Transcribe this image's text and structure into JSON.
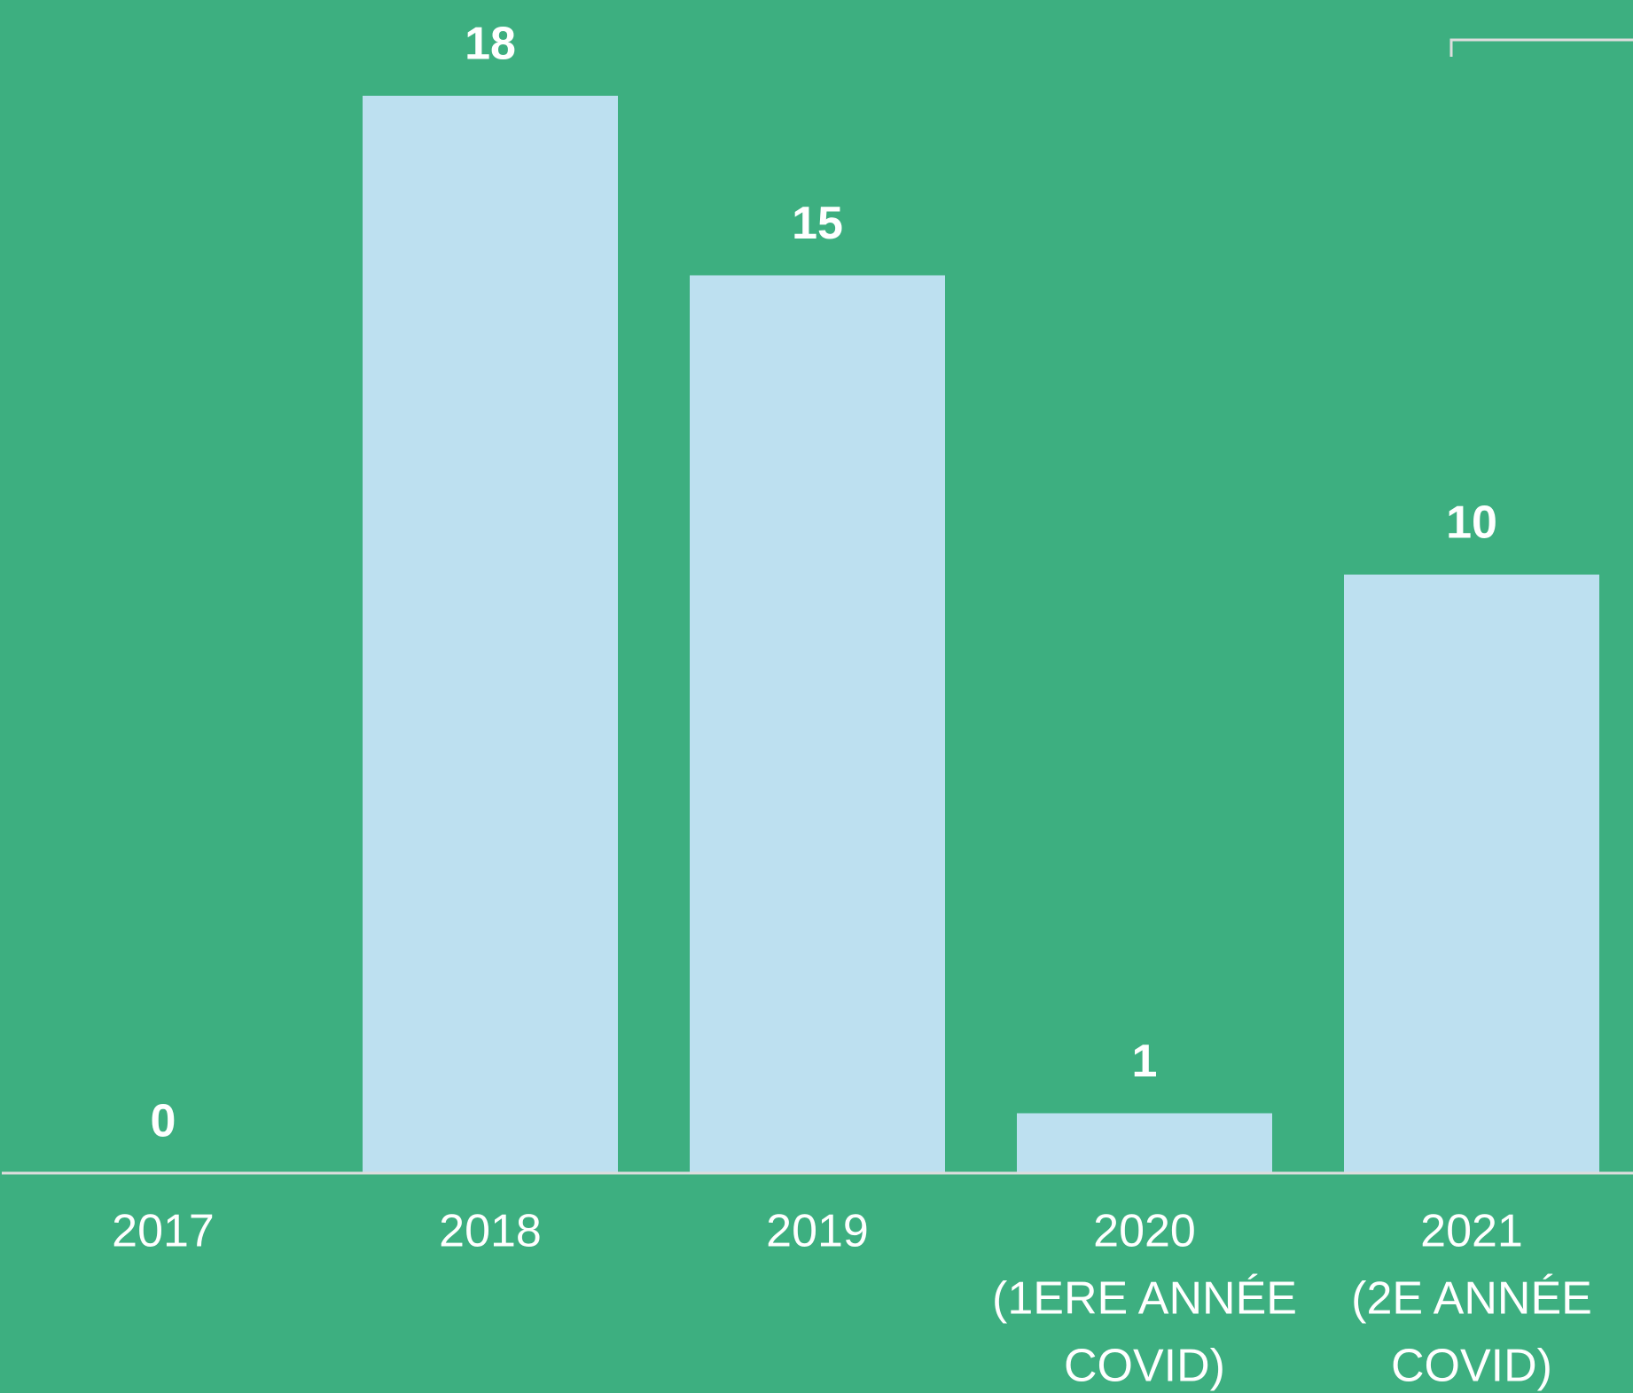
{
  "chart_data": {
    "type": "bar",
    "categories": [
      [
        "2017"
      ],
      [
        "2018"
      ],
      [
        "2019"
      ],
      [
        "2020",
        "(1ERE ANNÉE",
        "COVID)"
      ],
      [
        "2021",
        "(2E ANNÉE",
        "COVID)"
      ]
    ],
    "values": [
      0,
      18,
      15,
      1,
      10
    ],
    "color": "#bde0f0",
    "ylim": [
      0,
      18
    ]
  }
}
